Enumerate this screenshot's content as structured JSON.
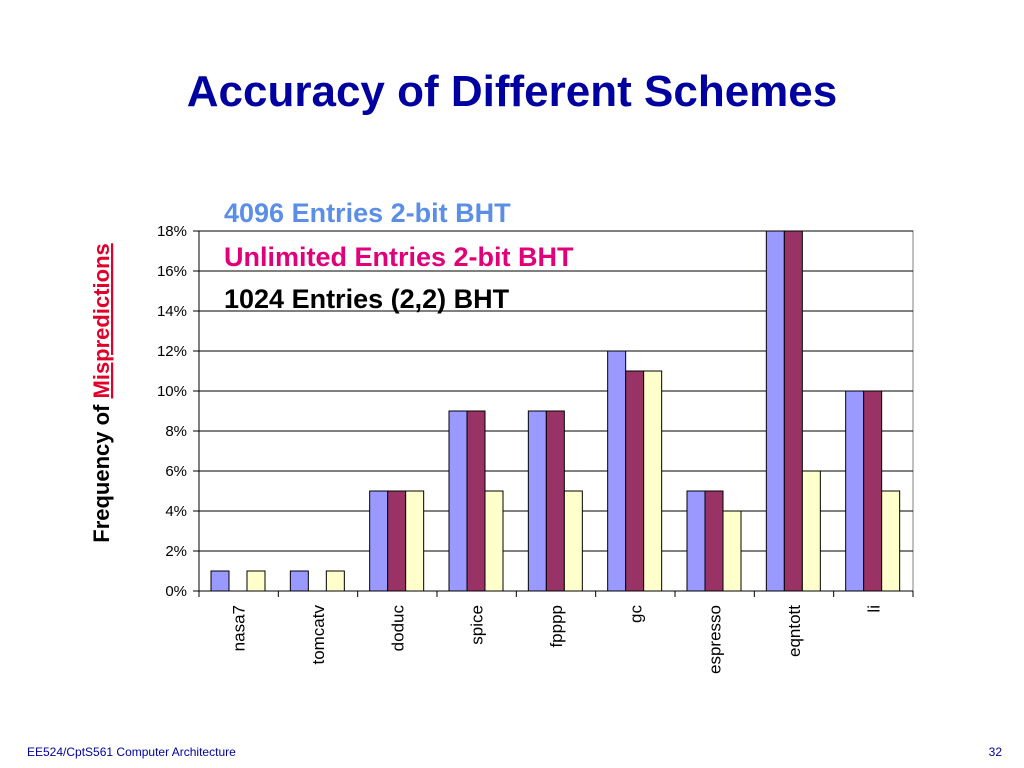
{
  "slide": {
    "title": "Accuracy of Different Schemes",
    "footer_left": "EE524/CptS561 Computer Architecture",
    "page_number": "32"
  },
  "colors": {
    "title": "#0000a0",
    "series_4096": "#9999ff",
    "series_unlimited": "#993366",
    "series_1024": "#ffffcc",
    "legend_4096": "#5b8ee6",
    "legend_unlimited": "#e0007a",
    "legend_1024": "#000000",
    "ylabel_emphasis": "#e0002a"
  },
  "chart_data": {
    "type": "bar",
    "ylabel_prefix": "Frequency of ",
    "ylabel_emphasis": "Mispredictions",
    "categories": [
      "nasa7",
      "tomcatv",
      "doduc",
      "spice",
      "fpppp",
      "gc",
      "espresso",
      "eqntott",
      "li"
    ],
    "y_ticks": [
      "0%",
      "2%",
      "4%",
      "6%",
      "8%",
      "10%",
      "12%",
      "14%",
      "16%",
      "18%"
    ],
    "ylim": [
      0,
      18
    ],
    "y_unit": "%",
    "grid": true,
    "legend_position": "top-left",
    "series": [
      {
        "name": "4096 Entries 2-bit BHT",
        "values": [
          1,
          1,
          5,
          9,
          9,
          12,
          5,
          18,
          10
        ]
      },
      {
        "name": "Unlimited Entries 2-bit BHT",
        "values": [
          0,
          0,
          5,
          9,
          9,
          11,
          5,
          18,
          10
        ]
      },
      {
        "name": "1024 Entries (2,2) BHT",
        "values": [
          1,
          1,
          5,
          5,
          5,
          11,
          4,
          6,
          5
        ]
      }
    ]
  }
}
